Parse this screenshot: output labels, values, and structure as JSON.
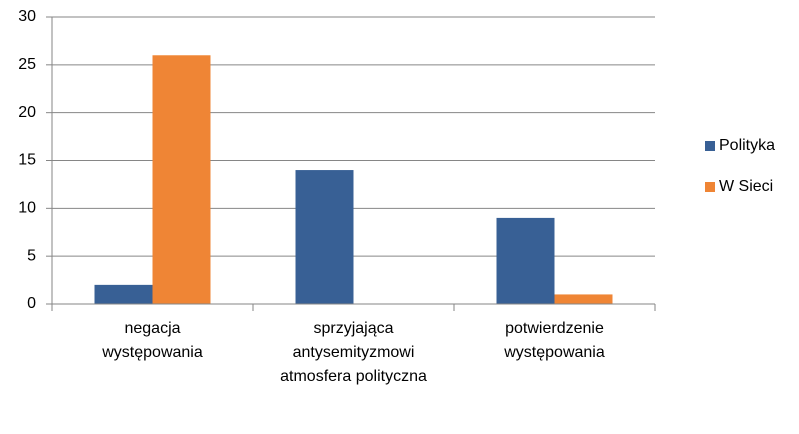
{
  "chart_data": {
    "type": "bar",
    "categories": [
      "negacja występowania",
      "sprzyjająca antysemityzmowi atmosfera polityczna",
      "potwierdzenie występowania"
    ],
    "series": [
      {
        "name": "Polityka",
        "color": "#386095",
        "values": [
          2,
          14,
          9
        ]
      },
      {
        "name": "W Sieci",
        "color": "#ef8535",
        "values": [
          26,
          0,
          1
        ]
      }
    ],
    "ylim": [
      0,
      30
    ],
    "yticks": [
      0,
      5,
      10,
      15,
      20,
      25,
      30
    ],
    "grid": true,
    "legend": "right"
  }
}
